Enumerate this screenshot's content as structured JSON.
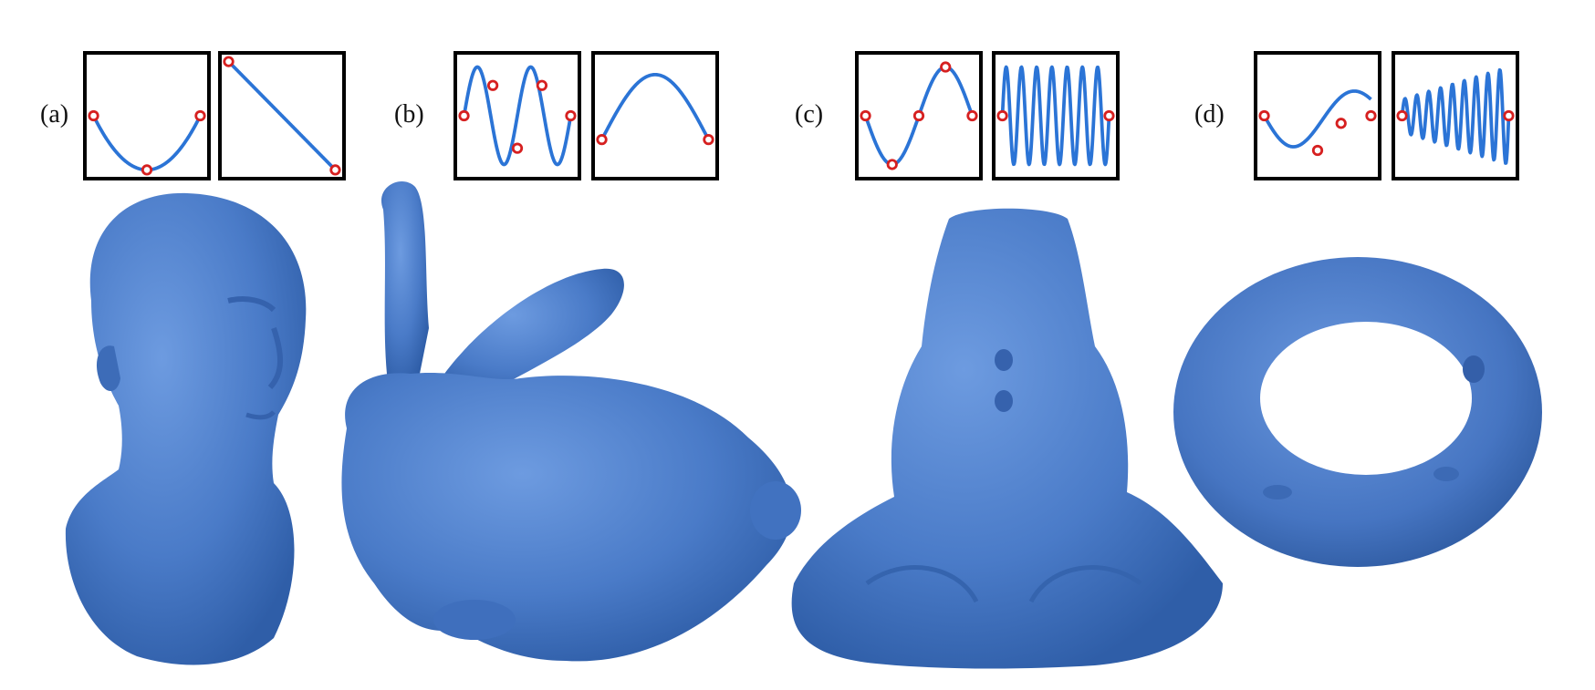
{
  "figure": {
    "panels": [
      {
        "label": "(a)",
        "left_plot": {
          "kind": "parabola",
          "markers": [
            [
              0,
              0.5
            ],
            [
              0.5,
              0.0
            ],
            [
              1,
              0.5
            ]
          ]
        },
        "right_plot": {
          "kind": "line",
          "markers": [
            [
              0,
              1.0
            ],
            [
              1,
              0.0
            ]
          ]
        }
      },
      {
        "label": "(b)",
        "left_plot": {
          "kind": "double-wave",
          "markers": [
            [
              0,
              0.5
            ],
            [
              0.27,
              0.78
            ],
            [
              0.5,
              0.2
            ],
            [
              0.73,
              0.78
            ],
            [
              1,
              0.5
            ]
          ]
        },
        "right_plot": {
          "kind": "hump",
          "markers": [
            [
              0,
              0.28
            ],
            [
              1,
              0.28
            ]
          ]
        }
      },
      {
        "label": "(c)",
        "left_plot": {
          "kind": "single-wave",
          "markers": [
            [
              0,
              0.5
            ],
            [
              0.25,
              0.05
            ],
            [
              0.5,
              0.5
            ],
            [
              0.75,
              0.95
            ],
            [
              1,
              0.5
            ]
          ]
        },
        "right_plot": {
          "kind": "high-frequency",
          "markers": [
            [
              0,
              0.5
            ],
            [
              1,
              0.5
            ]
          ]
        }
      },
      {
        "label": "(d)",
        "left_plot": {
          "kind": "damped-wave",
          "markers": [
            [
              0,
              0.5
            ],
            [
              0.5,
              0.18
            ],
            [
              0.72,
              0.43
            ],
            [
              1,
              0.5
            ]
          ]
        },
        "right_plot": {
          "kind": "growing-oscillation",
          "markers": [
            [
              0,
              0.5
            ],
            [
              1,
              0.5
            ]
          ]
        }
      }
    ],
    "colors": {
      "curve": "#2b74d6",
      "marker": "#d62020",
      "mesh": "#4a7bc8",
      "box": "#000000"
    },
    "meshes": [
      "human-head",
      "bunny",
      "frog",
      "torus"
    ]
  }
}
